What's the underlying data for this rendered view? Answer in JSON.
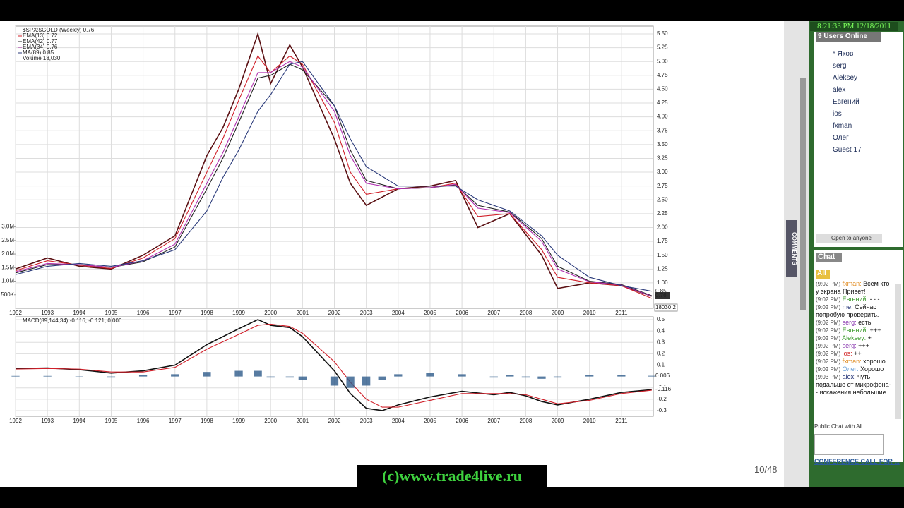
{
  "clock": "8:21:33 PM 12/18/2011",
  "chart_data": [
    {
      "type": "line",
      "title": "$SPX:$GOLD (Weekly) 0.76",
      "x": [
        1992,
        1993,
        1994,
        1995,
        1996,
        1997,
        1998,
        1998.5,
        1999,
        1999.6,
        2000,
        2000.6,
        2001,
        2002,
        2002.5,
        2003,
        2004,
        2005,
        2005.8,
        2006.5,
        2007.5,
        2008.5,
        2009,
        2010,
        2011,
        2011.95
      ],
      "xlim": [
        1992,
        2012
      ],
      "xticks": [
        1992,
        1993,
        1994,
        1995,
        1996,
        1997,
        1998,
        1999,
        2000,
        2001,
        2002,
        2003,
        2004,
        2005,
        2006,
        2007,
        2008,
        2009,
        2010,
        2011
      ],
      "ylim": [
        0.54,
        5.64
      ],
      "yticks": [
        {
          "value": 1,
          "label": "1.00"
        },
        {
          "value": 1.25,
          "label": "1.25"
        },
        {
          "value": 1.5,
          "label": "1.50"
        },
        {
          "value": 1.75,
          "label": "1.75"
        },
        {
          "value": 2,
          "label": "2.00"
        },
        {
          "value": 2.25,
          "label": "2.25"
        },
        {
          "value": 2.5,
          "label": "2.50"
        },
        {
          "value": 2.75,
          "label": "2.75"
        },
        {
          "value": 3,
          "label": "3.00"
        },
        {
          "value": 3.25,
          "label": "3.25"
        },
        {
          "value": 3.5,
          "label": "3.50"
        },
        {
          "value": 3.75,
          "label": "3.75"
        },
        {
          "value": 4,
          "label": "4.00"
        },
        {
          "value": 4.25,
          "label": "4.25"
        },
        {
          "value": 4.5,
          "label": "4.50"
        },
        {
          "value": 4.75,
          "label": "4.75"
        },
        {
          "value": 5,
          "label": "5.00"
        },
        {
          "value": 5.25,
          "label": "5.25"
        },
        {
          "value": 5.5,
          "label": "5.50"
        }
      ],
      "y2lim": [
        0,
        10400000
      ],
      "y2ticks": [
        {
          "value": 3000000,
          "label": "3.0M"
        },
        {
          "value": 2500000,
          "label": "2.5M"
        },
        {
          "value": 2000000,
          "label": "2.0M"
        },
        {
          "value": 1500000,
          "label": "1.5M"
        },
        {
          "value": 1000000,
          "label": "1.0M"
        },
        {
          "value": 500000,
          "label": "500K"
        }
      ],
      "volume_label": "Volume 18,030",
      "volume_last_label": "18030.2",
      "grid": true,
      "series": [
        {
          "name": "$SPX:$GOLD",
          "color": "#5a0f12",
          "values": [
            1.25,
            1.45,
            1.3,
            1.25,
            1.5,
            1.85,
            3.3,
            3.8,
            4.5,
            5.5,
            4.6,
            5.3,
            4.9,
            3.6,
            2.8,
            2.4,
            2.7,
            2.75,
            2.85,
            2.0,
            2.25,
            1.5,
            0.9,
            1.0,
            0.95,
            0.76
          ]
        },
        {
          "name": "EMA(13) 0.72",
          "color": "#d0202a",
          "values": [
            1.22,
            1.4,
            1.32,
            1.26,
            1.45,
            1.8,
            3.0,
            3.6,
            4.3,
            5.1,
            4.8,
            5.1,
            4.95,
            3.9,
            3.0,
            2.6,
            2.7,
            2.72,
            2.8,
            2.2,
            2.25,
            1.6,
            1.1,
            1.0,
            0.95,
            0.72
          ]
        },
        {
          "name": "EMA(42) 0.77",
          "color": "#222222",
          "values": [
            1.18,
            1.33,
            1.33,
            1.28,
            1.38,
            1.65,
            2.7,
            3.25,
            3.9,
            4.7,
            4.75,
            4.95,
            4.85,
            4.2,
            3.4,
            2.85,
            2.7,
            2.72,
            2.77,
            2.4,
            2.28,
            1.8,
            1.3,
            1.03,
            0.97,
            0.77
          ]
        },
        {
          "name": "EMA(34) 0.76",
          "color": "#b030b0",
          "values": [
            1.2,
            1.35,
            1.33,
            1.28,
            1.4,
            1.7,
            2.8,
            3.35,
            4.0,
            4.8,
            4.8,
            5.0,
            4.9,
            4.1,
            3.3,
            2.8,
            2.7,
            2.72,
            2.78,
            2.35,
            2.27,
            1.75,
            1.25,
            1.02,
            0.96,
            0.76
          ]
        },
        {
          "name": "MA(89) 0.85",
          "color": "#2a3a7a",
          "values": [
            1.15,
            1.3,
            1.35,
            1.3,
            1.4,
            1.6,
            2.3,
            2.9,
            3.4,
            4.1,
            4.4,
            4.95,
            5.0,
            4.2,
            3.6,
            3.1,
            2.75,
            2.75,
            2.75,
            2.5,
            2.3,
            1.85,
            1.5,
            1.1,
            0.95,
            0.85
          ]
        }
      ]
    },
    {
      "type": "line",
      "title": "MACD(89,144,34) -0.116, -0.121, 0.006",
      "x": [
        1992,
        1993,
        1994,
        1995,
        1996,
        1997,
        1998,
        1999,
        1999.6,
        2000,
        2000.6,
        2001,
        2002,
        2002.5,
        2003,
        2003.5,
        2004,
        2005,
        2006,
        2007,
        2007.5,
        2008,
        2008.5,
        2009,
        2010,
        2011,
        2011.95
      ],
      "xlim": [
        1992,
        2012
      ],
      "ylim": [
        -0.35,
        0.525
      ],
      "yticks": [
        0.5,
        0.4,
        0.3,
        0.2,
        0.1,
        -0.1,
        -0.2,
        -0.3
      ],
      "series": [
        {
          "name": "MACD",
          "color": "#111111",
          "values": [
            0.07,
            0.075,
            0.06,
            0.03,
            0.05,
            0.1,
            0.28,
            0.42,
            0.5,
            0.45,
            0.43,
            0.35,
            0.05,
            -0.15,
            -0.28,
            -0.3,
            -0.25,
            -0.18,
            -0.13,
            -0.16,
            -0.14,
            -0.17,
            -0.22,
            -0.25,
            -0.2,
            -0.14,
            -0.116
          ]
        },
        {
          "name": "Signal",
          "color": "#d0202a",
          "values": [
            0.065,
            0.07,
            0.065,
            0.04,
            0.04,
            0.08,
            0.24,
            0.37,
            0.45,
            0.46,
            0.44,
            0.38,
            0.13,
            -0.05,
            -0.2,
            -0.27,
            -0.27,
            -0.21,
            -0.15,
            -0.15,
            -0.15,
            -0.16,
            -0.2,
            -0.24,
            -0.21,
            -0.15,
            -0.121
          ]
        },
        {
          "name": "Histogram",
          "color": "#2d5a8a",
          "values": [
            0.005,
            0.005,
            -0.005,
            -0.01,
            0.01,
            0.02,
            0.04,
            0.05,
            0.05,
            -0.01,
            -0.01,
            -0.03,
            -0.08,
            -0.1,
            -0.08,
            -0.03,
            0.02,
            0.03,
            0.02,
            -0.01,
            0.01,
            -0.01,
            -0.02,
            -0.01,
            0.01,
            0.01,
            0.006
          ]
        }
      ]
    }
  ],
  "users": {
    "title": "9 Users Online",
    "names": [
      "* Яков",
      "serg",
      "Aleksey",
      "alex",
      "Евгений",
      "ios",
      "fxman",
      "Олег",
      "Guest 17"
    ],
    "access": "Open to anyone"
  },
  "side_tab": "COMMENTS",
  "chat": {
    "title": "Chat",
    "tab": "All",
    "messages": [
      {
        "time": "(9:02 PM)",
        "user": "fxman:",
        "text": "Всем кто у экрана Привет!"
      },
      {
        "time": "(9:02 PM)",
        "user": "Евгений:",
        "text": "- - -"
      },
      {
        "time": "(9:02 PM)",
        "user": "me:",
        "text": "Сейчас попробую проверить."
      },
      {
        "time": "(9:02 PM)",
        "user": "serg:",
        "text": "есть"
      },
      {
        "time": "(9:02 PM)",
        "user": "Евгений:",
        "text": "+++"
      },
      {
        "time": "(9:02 PM)",
        "user": "Aleksey:",
        "text": "+"
      },
      {
        "time": "(9:02 PM)",
        "user": "serg:",
        "text": "+++"
      },
      {
        "time": "(9:02 PM)",
        "user": "ios:",
        "text": "++"
      },
      {
        "time": "(9:02 PM)",
        "user": "fxman:",
        "text": "хорошо"
      },
      {
        "time": "(9:02 PM)",
        "user": "Олег:",
        "text": "Хорошо"
      },
      {
        "time": "(9:03 PM)",
        "user": "alex:",
        "text": "чуть подальше от микрофона-- искажения небольшие"
      }
    ],
    "footer": "Public Chat with All",
    "conference": "CONFERENCE CALL FOR ..."
  },
  "watermark": "(c)www.trade4live.ru",
  "page_counter": "10/48"
}
